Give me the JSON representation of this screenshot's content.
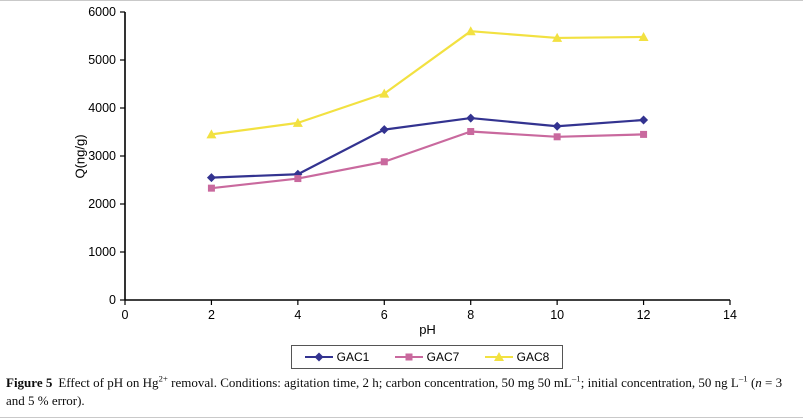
{
  "figure": {
    "caption": {
      "label": "Figure 5",
      "part1": "Effect of pH on Hg",
      "sup1": "2+",
      "part2": " removal. Conditions: agitation time, 2 h; carbon concentration, 50 mg 50 mL",
      "sup2": "–1",
      "part3": "; initial concentration, 50 ng L",
      "sup3": "–1",
      "part4": " (",
      "italic_n": "n",
      "part5": " = 3 and 5 % error)."
    }
  },
  "chart_data": {
    "type": "line",
    "x": [
      2,
      4,
      6,
      8,
      10,
      12
    ],
    "series": [
      {
        "name": "GAC1",
        "marker": "diamond",
        "color": "#333390",
        "values": [
          2550,
          2620,
          3550,
          3790,
          3620,
          3750
        ]
      },
      {
        "name": "GAC7",
        "marker": "square",
        "color": "#C9699E",
        "values": [
          2330,
          2530,
          2880,
          3510,
          3400,
          3450
        ]
      },
      {
        "name": "GAC8",
        "marker": "triangle",
        "color": "#F2E141",
        "values": [
          3450,
          3690,
          4300,
          5600,
          5460,
          5480
        ]
      }
    ],
    "title": "",
    "xlabel": "pH",
    "ylabel": "Q(ng/g)",
    "xlim": [
      0,
      14
    ],
    "ylim": [
      0,
      6000
    ],
    "xticks": [
      0,
      2,
      4,
      6,
      8,
      10,
      12,
      14
    ],
    "yticks": [
      0,
      1000,
      2000,
      3000,
      4000,
      5000,
      6000
    ],
    "grid": false,
    "legend_position": "bottom"
  }
}
